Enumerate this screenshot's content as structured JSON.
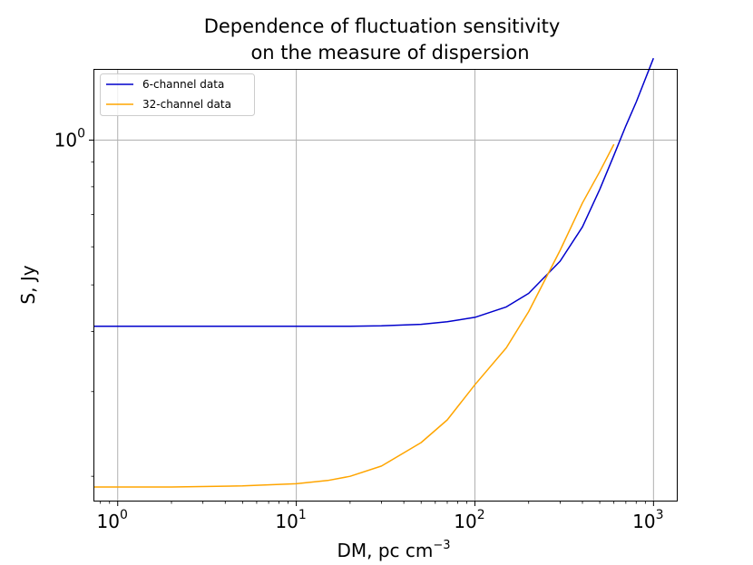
{
  "chart_data": {
    "type": "line",
    "title_lines": [
      "Dependence of fluctuation sensitivity",
      "on the measure of dispersion"
    ],
    "xlabel": "DM, pc cm",
    "xlabel_sup": "−3",
    "ylabel": "S, Jy",
    "x_scale": "log",
    "y_scale": "log",
    "xlim": [
      0.74,
      1350
    ],
    "ylim": [
      0.178,
      1.4
    ],
    "grid": true,
    "legend_position": "top-left",
    "x_ticks": [
      {
        "value": 1,
        "base": "10",
        "exp": "0"
      },
      {
        "value": 10,
        "base": "10",
        "exp": "1"
      },
      {
        "value": 100,
        "base": "10",
        "exp": "2"
      },
      {
        "value": 1000,
        "base": "10",
        "exp": "3"
      }
    ],
    "y_ticks": [
      {
        "value": 1,
        "base": "10",
        "exp": "0"
      }
    ],
    "y_minor_ticks": [
      0.2,
      0.3,
      0.4,
      0.5,
      0.6,
      0.7,
      0.8,
      0.9
    ],
    "series": [
      {
        "name": "6-channel data",
        "color": "#0000cc",
        "x": [
          0.74,
          1,
          2,
          5,
          10,
          20,
          30,
          50,
          70,
          100,
          150,
          200,
          300,
          400,
          500,
          600,
          700,
          800,
          1000
        ],
        "y": [
          0.41,
          0.41,
          0.41,
          0.41,
          0.41,
          0.41,
          0.411,
          0.414,
          0.419,
          0.428,
          0.45,
          0.48,
          0.56,
          0.66,
          0.79,
          0.93,
          1.07,
          1.2,
          1.48
        ]
      },
      {
        "name": "32-channel data",
        "color": "#ffa500",
        "x": [
          0.74,
          1,
          2,
          5,
          10,
          15,
          20,
          30,
          50,
          70,
          100,
          150,
          200,
          300,
          400,
          500,
          600
        ],
        "y": [
          0.19,
          0.19,
          0.19,
          0.191,
          0.193,
          0.196,
          0.2,
          0.21,
          0.235,
          0.262,
          0.31,
          0.37,
          0.44,
          0.59,
          0.74,
          0.86,
          0.98
        ]
      }
    ]
  }
}
